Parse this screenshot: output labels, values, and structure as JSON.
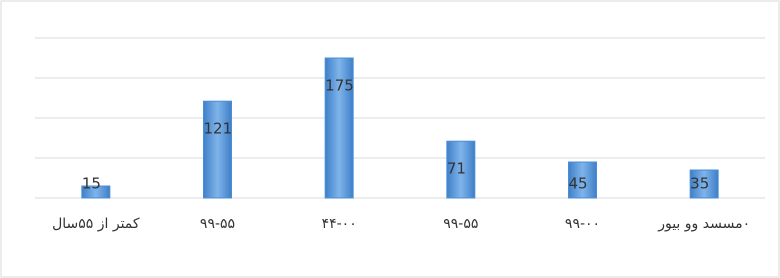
{
  "chart_data": {
    "type": "bar",
    "categories": [
      "کمتر از ۵۵سال",
      "۹۹-۵۵",
      "۴۴-۰۰",
      "۹۹-۵۵",
      "۹۹-۰۰",
      "۰مسسد وو بیور"
    ],
    "values": [
      15,
      121,
      175,
      71,
      45,
      35
    ],
    "color": "#4a8fd6",
    "ylim": [
      0,
      200
    ],
    "yticks": [
      0,
      50,
      100,
      150,
      200
    ],
    "grid": true
  }
}
